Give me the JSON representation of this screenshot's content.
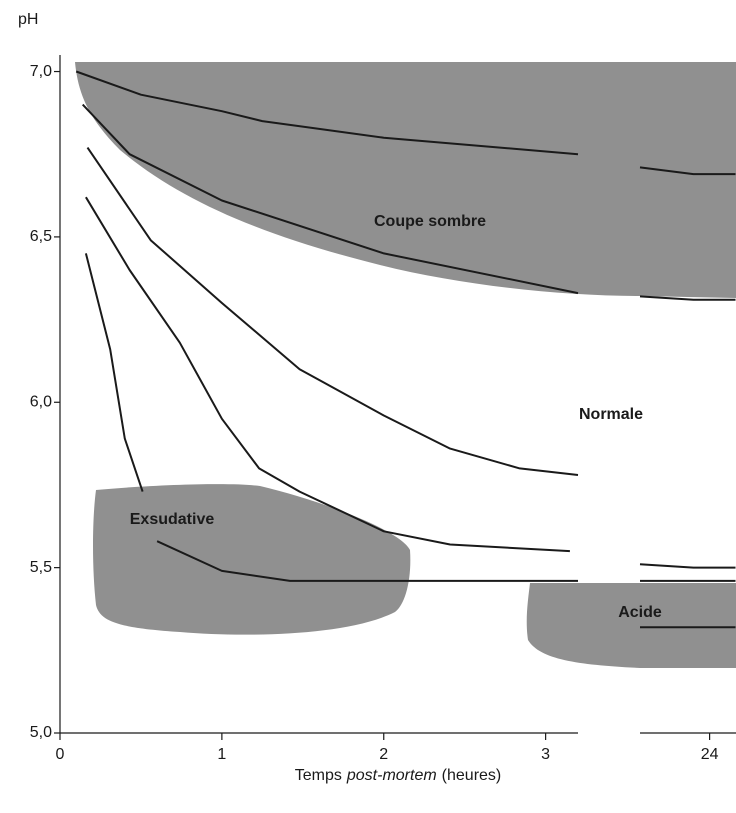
{
  "chart_data": {
    "type": "line",
    "ylabel": "pH",
    "xlabel": [
      "Temps",
      "post-mortem",
      "(heures)"
    ],
    "xlim": [
      0,
      24.16
    ],
    "x_break": [
      3.2,
      23.57
    ],
    "xticks": [
      0,
      1,
      2,
      3,
      24
    ],
    "ylim": [
      5.0,
      7.05
    ],
    "yticks": [
      {
        "value": 5.0,
        "label": "5,0"
      },
      {
        "value": 5.5,
        "label": "5,5"
      },
      {
        "value": 6.0,
        "label": "6,0"
      },
      {
        "value": 6.5,
        "label": "6,5"
      },
      {
        "value": 7.0,
        "label": "7,0"
      }
    ],
    "annotations": [
      "Coupe sombre",
      "Normale",
      "Exsudative",
      "Acide"
    ],
    "region_color": "#909090",
    "series": [
      {
        "color": "#1a1a1a",
        "x": [
          0.1,
          0.5,
          1,
          1.25,
          2,
          3.2,
          null,
          23.57,
          23.9,
          24.16
        ],
        "values": [
          7.0,
          6.93,
          6.88,
          6.85,
          6.8,
          6.75,
          null,
          6.71,
          6.69,
          6.69
        ]
      },
      {
        "color": "#1a1a1a",
        "x": [
          0.14,
          0.43,
          1,
          2,
          3.2,
          null,
          23.57,
          23.9,
          24.16
        ],
        "values": [
          6.9,
          6.75,
          6.61,
          6.45,
          6.33,
          null,
          6.32,
          6.31,
          6.31
        ]
      },
      {
        "color": "#1a1a1a",
        "x": [
          0.17,
          0.56,
          1,
          1.48,
          2,
          2.41,
          2.84,
          3.2
        ],
        "values": [
          6.77,
          6.49,
          6.3,
          6.1,
          5.96,
          5.86,
          5.8,
          5.78
        ]
      },
      {
        "color": "#1a1a1a",
        "x": [
          0.16,
          0.43,
          0.74,
          1,
          1.23,
          1.48,
          2,
          2.41,
          3.15,
          null,
          23.57,
          23.9,
          24.16
        ],
        "values": [
          6.62,
          6.4,
          6.18,
          5.95,
          5.8,
          5.73,
          5.61,
          5.57,
          5.55,
          null,
          5.51,
          5.5,
          5.5
        ]
      },
      {
        "color": "#1a1a1a",
        "x": [
          0.16,
          0.31,
          0.4,
          0.51
        ],
        "values": [
          6.45,
          6.16,
          5.89,
          5.73
        ]
      },
      {
        "color": "#1a1a1a",
        "x": [
          0.6,
          1,
          1.42,
          3.2,
          null,
          23.57,
          24.16
        ],
        "values": [
          5.58,
          5.49,
          5.46,
          5.46,
          null,
          5.46,
          5.46
        ]
      },
      {
        "color": "#1a1a1a",
        "x": [
          23.57,
          24.16
        ],
        "values": [
          5.32,
          5.32
        ]
      }
    ]
  }
}
